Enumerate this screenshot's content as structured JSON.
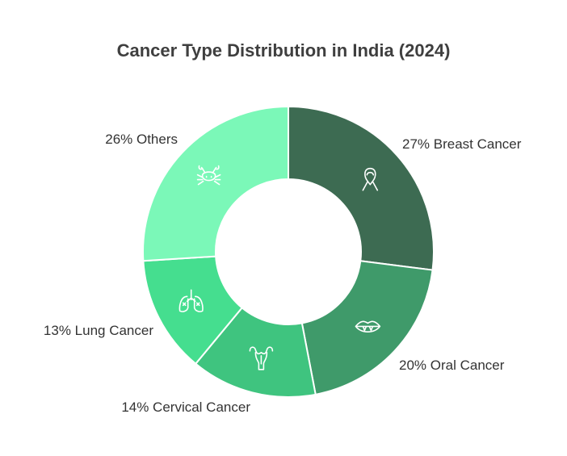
{
  "chart_data": {
    "type": "pie",
    "title": "Cancer Type Distribution in India (2024)",
    "slices": [
      {
        "name": "Breast Cancer",
        "value": 27,
        "label": "27% Breast Cancer",
        "color": "#3d6b52",
        "icon": "ribbon-icon"
      },
      {
        "name": "Oral Cancer",
        "value": 20,
        "label": "20% Oral Cancer",
        "color": "#3f9a6a",
        "icon": "mouth-icon"
      },
      {
        "name": "Cervical Cancer",
        "value": 14,
        "label": "14% Cervical Cancer",
        "color": "#3fc47f",
        "icon": "uterus-icon"
      },
      {
        "name": "Lung Cancer",
        "value": 13,
        "label": "13% Lung Cancer",
        "color": "#45de8f",
        "icon": "lungs-icon"
      },
      {
        "name": "Others",
        "value": 26,
        "label": "26% Others",
        "color": "#7bf8b8",
        "icon": "crab-icon"
      }
    ]
  }
}
